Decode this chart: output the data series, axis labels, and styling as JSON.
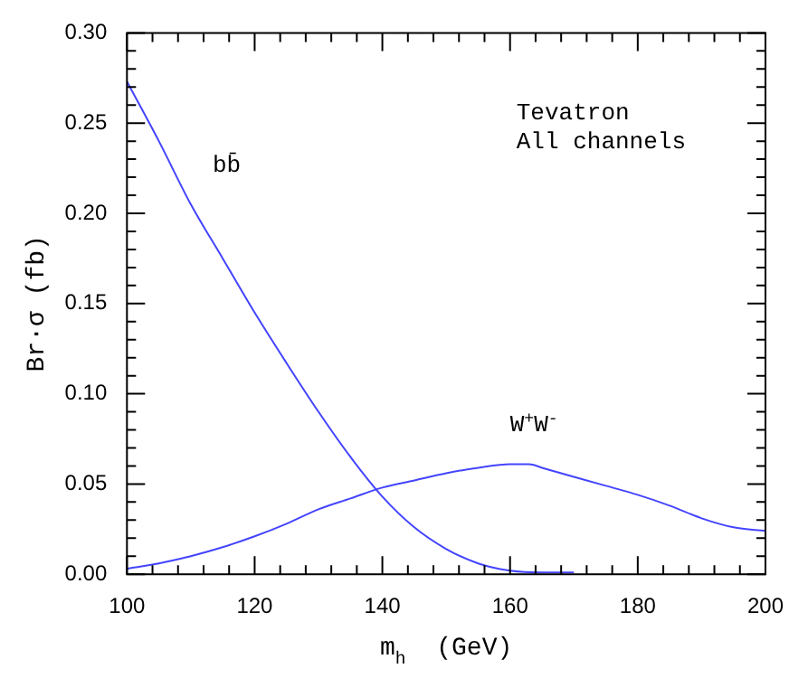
{
  "chart_data": {
    "type": "line",
    "xlabel": "m$_{h}$  (GeV)",
    "ylabel": "Br·σ (fb)",
    "xlim": [
      100,
      200
    ],
    "ylim": [
      0,
      0.3
    ],
    "xticks": [
      100,
      {
        "value": 104,
        "label": null
      },
      {
        "value": 108,
        "label": null
      },
      {
        "value": 112,
        "label": null
      },
      {
        "value": 116,
        "label": null
      },
      120,
      {
        "value": 124,
        "label": null
      },
      {
        "value": 128,
        "label": null
      },
      {
        "value": 132,
        "label": null
      },
      {
        "value": 136,
        "label": null
      },
      140,
      {
        "value": 144,
        "label": null
      },
      {
        "value": 148,
        "label": null
      },
      {
        "value": 152,
        "label": null
      },
      {
        "value": 156,
        "label": null
      },
      160,
      {
        "value": 164,
        "label": null
      },
      {
        "value": 168,
        "label": null
      },
      {
        "value": 172,
        "label": null
      },
      {
        "value": 176,
        "label": null
      },
      180,
      {
        "value": 184,
        "label": null
      },
      {
        "value": 188,
        "label": null
      },
      {
        "value": 192,
        "label": null
      },
      {
        "value": 196,
        "label": null
      },
      200
    ],
    "yticks": [
      {
        "value": 0,
        "label": "0.00"
      },
      {
        "value": 0.01,
        "label": null
      },
      {
        "value": 0.02,
        "label": null
      },
      {
        "value": 0.03,
        "label": null
      },
      {
        "value": 0.04,
        "label": null
      },
      {
        "value": 0.05,
        "label": "0.05"
      },
      {
        "value": 0.06,
        "label": null
      },
      {
        "value": 0.07,
        "label": null
      },
      {
        "value": 0.08,
        "label": null
      },
      {
        "value": 0.09,
        "label": null
      },
      {
        "value": 0.1,
        "label": "0.10"
      },
      {
        "value": 0.11,
        "label": null
      },
      {
        "value": 0.12,
        "label": null
      },
      {
        "value": 0.13,
        "label": null
      },
      {
        "value": 0.14,
        "label": null
      },
      {
        "value": 0.15,
        "label": "0.15"
      },
      {
        "value": 0.16,
        "label": null
      },
      {
        "value": 0.17,
        "label": null
      },
      {
        "value": 0.18,
        "label": null
      },
      {
        "value": 0.19,
        "label": null
      },
      {
        "value": 0.2,
        "label": "0.20"
      },
      {
        "value": 0.21,
        "label": null
      },
      {
        "value": 0.22,
        "label": null
      },
      {
        "value": 0.23,
        "label": null
      },
      {
        "value": 0.24,
        "label": null
      },
      {
        "value": 0.25,
        "label": "0.25"
      },
      {
        "value": 0.26,
        "label": null
      },
      {
        "value": 0.27,
        "label": null
      },
      {
        "value": 0.28,
        "label": null
      },
      {
        "value": 0.29,
        "label": null
      },
      {
        "value": 0.3,
        "label": "0.30"
      }
    ],
    "grid": false,
    "marker": "none",
    "line_style": "solid",
    "series": [
      {
        "name": "bb̄",
        "color": "#4444ff",
        "x": [
          100,
          105,
          110,
          115,
          120,
          125,
          130,
          135,
          140,
          145,
          150,
          155,
          160,
          165,
          170
        ],
        "values": [
          0.273,
          0.24,
          0.205,
          0.175,
          0.145,
          0.117,
          0.09,
          0.065,
          0.043,
          0.026,
          0.014,
          0.006,
          0.002,
          0.001,
          0.001
        ]
      },
      {
        "name": "W$^{+}$W$^{-}$",
        "color": "#4444ff",
        "x": [
          100,
          105,
          110,
          115,
          120,
          125,
          130,
          135,
          140,
          145,
          150,
          155,
          160,
          163,
          165,
          170,
          175,
          180,
          185,
          190,
          195,
          200
        ],
        "values": [
          0.003,
          0.006,
          0.01,
          0.015,
          0.021,
          0.028,
          0.036,
          0.042,
          0.048,
          0.052,
          0.056,
          0.059,
          0.061,
          0.061,
          0.059,
          0.054,
          0.049,
          0.044,
          0.038,
          0.031,
          0.026,
          0.024
        ]
      }
    ],
    "annotations": [
      "Tevatron",
      "All channels"
    ]
  }
}
